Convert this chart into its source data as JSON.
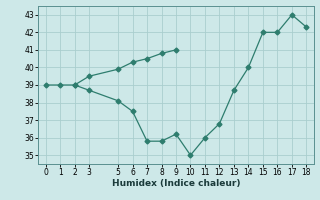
{
  "line1_x": [
    0,
    1,
    2,
    3,
    5,
    6,
    7,
    8,
    9,
    10,
    11,
    12,
    13,
    14,
    15,
    16,
    17,
    18
  ],
  "line1_y": [
    39,
    39,
    39,
    38.7,
    38.1,
    37.5,
    35.8,
    35.8,
    36.2,
    35.0,
    36.0,
    36.8,
    38.7,
    40.0,
    42.0,
    42.0,
    43.0,
    42.3
  ],
  "line2_x": [
    2,
    3,
    5,
    6,
    7,
    8,
    9
  ],
  "line2_y": [
    39,
    39.5,
    39.9,
    40.3,
    40.5,
    40.8,
    41.0
  ],
  "line_color": "#2e7d6e",
  "bg_color": "#cde8e8",
  "grid_color": "#aacece",
  "xlabel": "Humidex (Indice chaleur)",
  "xlim": [
    -0.5,
    18.5
  ],
  "ylim": [
    34.5,
    43.5
  ],
  "yticks": [
    35,
    36,
    37,
    38,
    39,
    40,
    41,
    42,
    43
  ],
  "xticks": [
    0,
    1,
    2,
    3,
    5,
    6,
    7,
    8,
    9,
    10,
    11,
    12,
    13,
    14,
    15,
    16,
    17,
    18
  ]
}
